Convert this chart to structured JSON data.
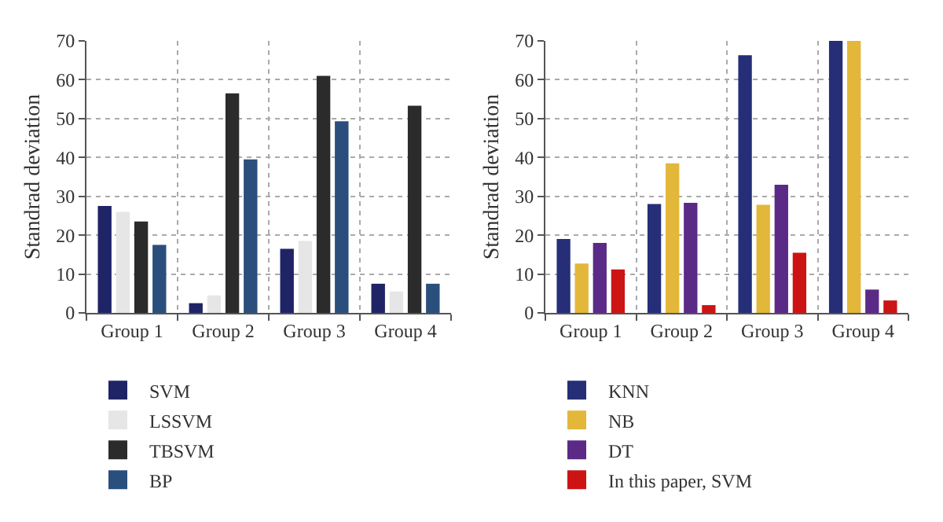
{
  "chart_data": [
    {
      "type": "bar",
      "ylabel": "Standrad deviation",
      "categories": [
        "Group 1",
        "Group 2",
        "Group 3",
        "Group 4"
      ],
      "series": [
        {
          "name": "SVM",
          "color": "#1f2466",
          "values": [
            27.5,
            2.5,
            16.5,
            7.5
          ]
        },
        {
          "name": "LSSVM",
          "color": "#e6e6e6",
          "values": [
            26,
            4.5,
            18.5,
            5.5
          ]
        },
        {
          "name": "TBSVM",
          "color": "#2b2b2b",
          "values": [
            23.5,
            56.5,
            61,
            53.3
          ]
        },
        {
          "name": "BP",
          "color": "#2b4f7c",
          "values": [
            17.5,
            39.5,
            49.3,
            7.5
          ]
        }
      ],
      "ylim": [
        0,
        70
      ],
      "yticks": [
        0,
        10,
        20,
        30,
        40,
        50,
        60,
        70
      ],
      "grid": true,
      "legend": "bottom"
    },
    {
      "type": "bar",
      "ylabel": "Standrad deviation",
      "categories": [
        "Group 1",
        "Group 2",
        "Group 3",
        "Group 4"
      ],
      "series": [
        {
          "name": "KNN",
          "color": "#262e78",
          "values": [
            19,
            28,
            66.3,
            70
          ]
        },
        {
          "name": "NB",
          "color": "#e2b73a",
          "values": [
            12.7,
            38.5,
            27.8,
            70
          ]
        },
        {
          "name": "DT",
          "color": "#5b2a86",
          "values": [
            18,
            28.3,
            33,
            6
          ]
        },
        {
          "name": "In this paper, SVM",
          "color": "#cc1414",
          "values": [
            11.2,
            2,
            15.5,
            3.2
          ]
        }
      ],
      "ylim": [
        0,
        70
      ],
      "yticks": [
        0,
        10,
        20,
        30,
        40,
        50,
        60,
        70
      ],
      "grid": true,
      "legend": "bottom"
    }
  ]
}
